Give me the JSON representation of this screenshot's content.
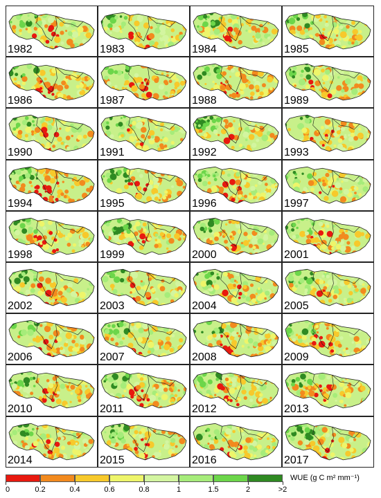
{
  "years": [
    "1982",
    "1983",
    "1984",
    "1985",
    "1986",
    "1987",
    "1988",
    "1989",
    "1990",
    "1991",
    "1992",
    "1993",
    "1994",
    "1995",
    "1996",
    "1997",
    "1998",
    "1999",
    "2000",
    "2001",
    "2002",
    "2003",
    "2004",
    "2005",
    "2006",
    "2007",
    "2008",
    "2009",
    "2010",
    "2011",
    "2012",
    "2013",
    "2014",
    "2015",
    "2016",
    "2017"
  ],
  "legend": {
    "title": "WUE (g C m² mm⁻¹)",
    "labels": [
      "0",
      "0.2",
      "0.4",
      "0.6",
      "0.8",
      "1",
      "1.5",
      "2",
      ">2"
    ],
    "colors": [
      "#e8190f",
      "#f28a1e",
      "#f7c92b",
      "#eef56a",
      "#d3f5a0",
      "#a6ec7a",
      "#6cd64a",
      "#2f8a22"
    ]
  },
  "colors": {
    "panel_border": "#222222",
    "region_outline": "#1a1a1a"
  }
}
